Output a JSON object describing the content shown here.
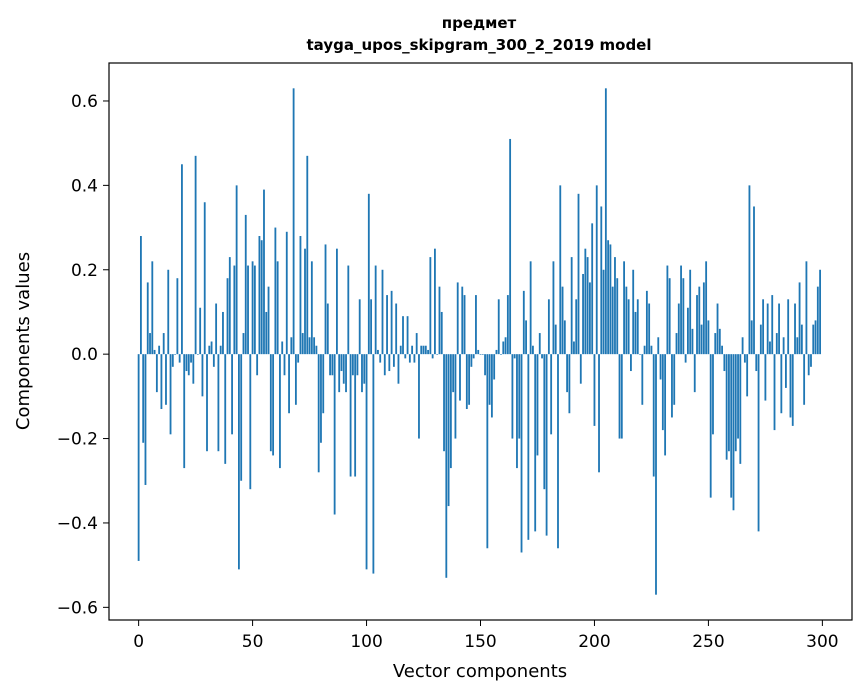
{
  "chart_data": {
    "type": "bar",
    "title": "предмет",
    "subtitle": "tayga_upos_skipgram_300_2_2019 model",
    "xlabel": "Vector components",
    "ylabel": "Components values",
    "xlim": [
      -13,
      313
    ],
    "ylim": [
      -0.63,
      0.69
    ],
    "xticks": [
      0,
      50,
      100,
      150,
      200,
      250,
      300
    ],
    "yticks": [
      -0.6,
      -0.4,
      -0.2,
      0.0,
      0.2,
      0.4,
      0.6
    ],
    "xtick_labels": [
      "0",
      "50",
      "100",
      "150",
      "200",
      "250",
      "300"
    ],
    "ytick_labels": [
      "−0.6",
      "−0.4",
      "−0.2",
      "0.0",
      "0.2",
      "0.4",
      "0.6"
    ],
    "bar_color": "#1f77b4",
    "grid": false,
    "values": [
      -0.49,
      0.28,
      -0.21,
      -0.31,
      0.17,
      0.05,
      0.22,
      0.01,
      -0.09,
      0.02,
      -0.13,
      0.05,
      -0.12,
      0.2,
      -0.19,
      -0.03,
      0.0,
      0.18,
      -0.02,
      0.45,
      -0.27,
      -0.04,
      -0.05,
      -0.02,
      -0.07,
      0.47,
      0.0,
      0.11,
      -0.1,
      0.36,
      -0.23,
      0.02,
      0.03,
      -0.03,
      0.12,
      -0.23,
      0.02,
      0.1,
      -0.26,
      0.18,
      0.23,
      -0.19,
      0.21,
      0.4,
      -0.51,
      -0.3,
      0.05,
      0.33,
      0.21,
      -0.32,
      0.22,
      0.21,
      -0.05,
      0.28,
      0.27,
      0.39,
      0.1,
      0.16,
      -0.23,
      -0.24,
      0.3,
      0.22,
      -0.27,
      0.03,
      -0.05,
      0.29,
      -0.14,
      0.04,
      0.63,
      -0.12,
      -0.02,
      0.28,
      0.05,
      0.25,
      0.47,
      0.04,
      0.22,
      0.04,
      0.02,
      -0.28,
      -0.21,
      -0.14,
      0.26,
      0.12,
      -0.05,
      -0.05,
      -0.38,
      0.25,
      -0.09,
      -0.04,
      -0.07,
      -0.09,
      0.21,
      -0.29,
      -0.05,
      -0.29,
      -0.05,
      0.13,
      -0.09,
      -0.07,
      -0.51,
      0.38,
      0.13,
      -0.52,
      0.21,
      0.01,
      -0.02,
      0.2,
      -0.05,
      0.14,
      -0.04,
      0.15,
      -0.03,
      0.12,
      -0.07,
      0.02,
      0.09,
      -0.01,
      0.09,
      -0.02,
      0.02,
      -0.02,
      0.05,
      -0.2,
      0.02,
      0.02,
      0.02,
      0.01,
      0.23,
      -0.01,
      0.25,
      0.0,
      0.16,
      0.1,
      -0.23,
      -0.53,
      -0.36,
      -0.27,
      -0.09,
      -0.2,
      0.17,
      -0.11,
      0.16,
      0.14,
      -0.13,
      -0.12,
      -0.03,
      -0.01,
      0.14,
      0.01,
      0.0,
      0.0,
      -0.05,
      -0.46,
      -0.12,
      -0.15,
      -0.06,
      0.01,
      0.13,
      0.0,
      0.03,
      0.04,
      0.14,
      0.51,
      -0.2,
      -0.01,
      -0.27,
      -0.2,
      -0.47,
      0.15,
      0.08,
      -0.44,
      0.22,
      0.02,
      -0.42,
      -0.24,
      0.05,
      -0.01,
      -0.32,
      -0.43,
      0.13,
      -0.19,
      0.22,
      0.07,
      -0.46,
      0.4,
      0.16,
      0.08,
      -0.09,
      -0.14,
      0.23,
      0.03,
      0.13,
      0.38,
      -0.07,
      0.19,
      0.25,
      0.23,
      0.17,
      0.31,
      -0.17,
      0.4,
      -0.28,
      0.35,
      0.2,
      0.63,
      0.27,
      0.26,
      0.16,
      0.23,
      0.18,
      -0.2,
      -0.2,
      0.22,
      0.16,
      0.13,
      -0.04,
      0.2,
      0.1,
      0.13,
      0.0,
      -0.12,
      0.02,
      0.15,
      0.12,
      0.02,
      -0.29,
      -0.57,
      0.04,
      -0.06,
      -0.18,
      -0.24,
      0.21,
      0.18,
      -0.15,
      -0.12,
      0.05,
      0.12,
      0.21,
      0.18,
      -0.02,
      0.11,
      0.2,
      0.06,
      -0.09,
      0.14,
      0.16,
      0.07,
      0.17,
      0.22,
      0.08,
      -0.34,
      -0.19,
      0.05,
      0.12,
      0.06,
      0.02,
      -0.04,
      -0.25,
      -0.23,
      -0.34,
      -0.37,
      -0.23,
      -0.2,
      -0.26,
      0.04,
      -0.02,
      -0.1,
      0.4,
      0.08,
      0.35,
      -0.04,
      -0.42,
      0.07,
      0.13,
      -0.11,
      0.12,
      0.03,
      0.14,
      -0.18,
      0.05,
      0.12,
      -0.14,
      0.04,
      -0.08,
      0.13,
      -0.15,
      -0.17,
      0.12,
      0.04,
      0.17,
      0.07,
      -0.12,
      0.22,
      -0.05,
      -0.03,
      0.07,
      0.08,
      0.16,
      0.2
    ]
  }
}
